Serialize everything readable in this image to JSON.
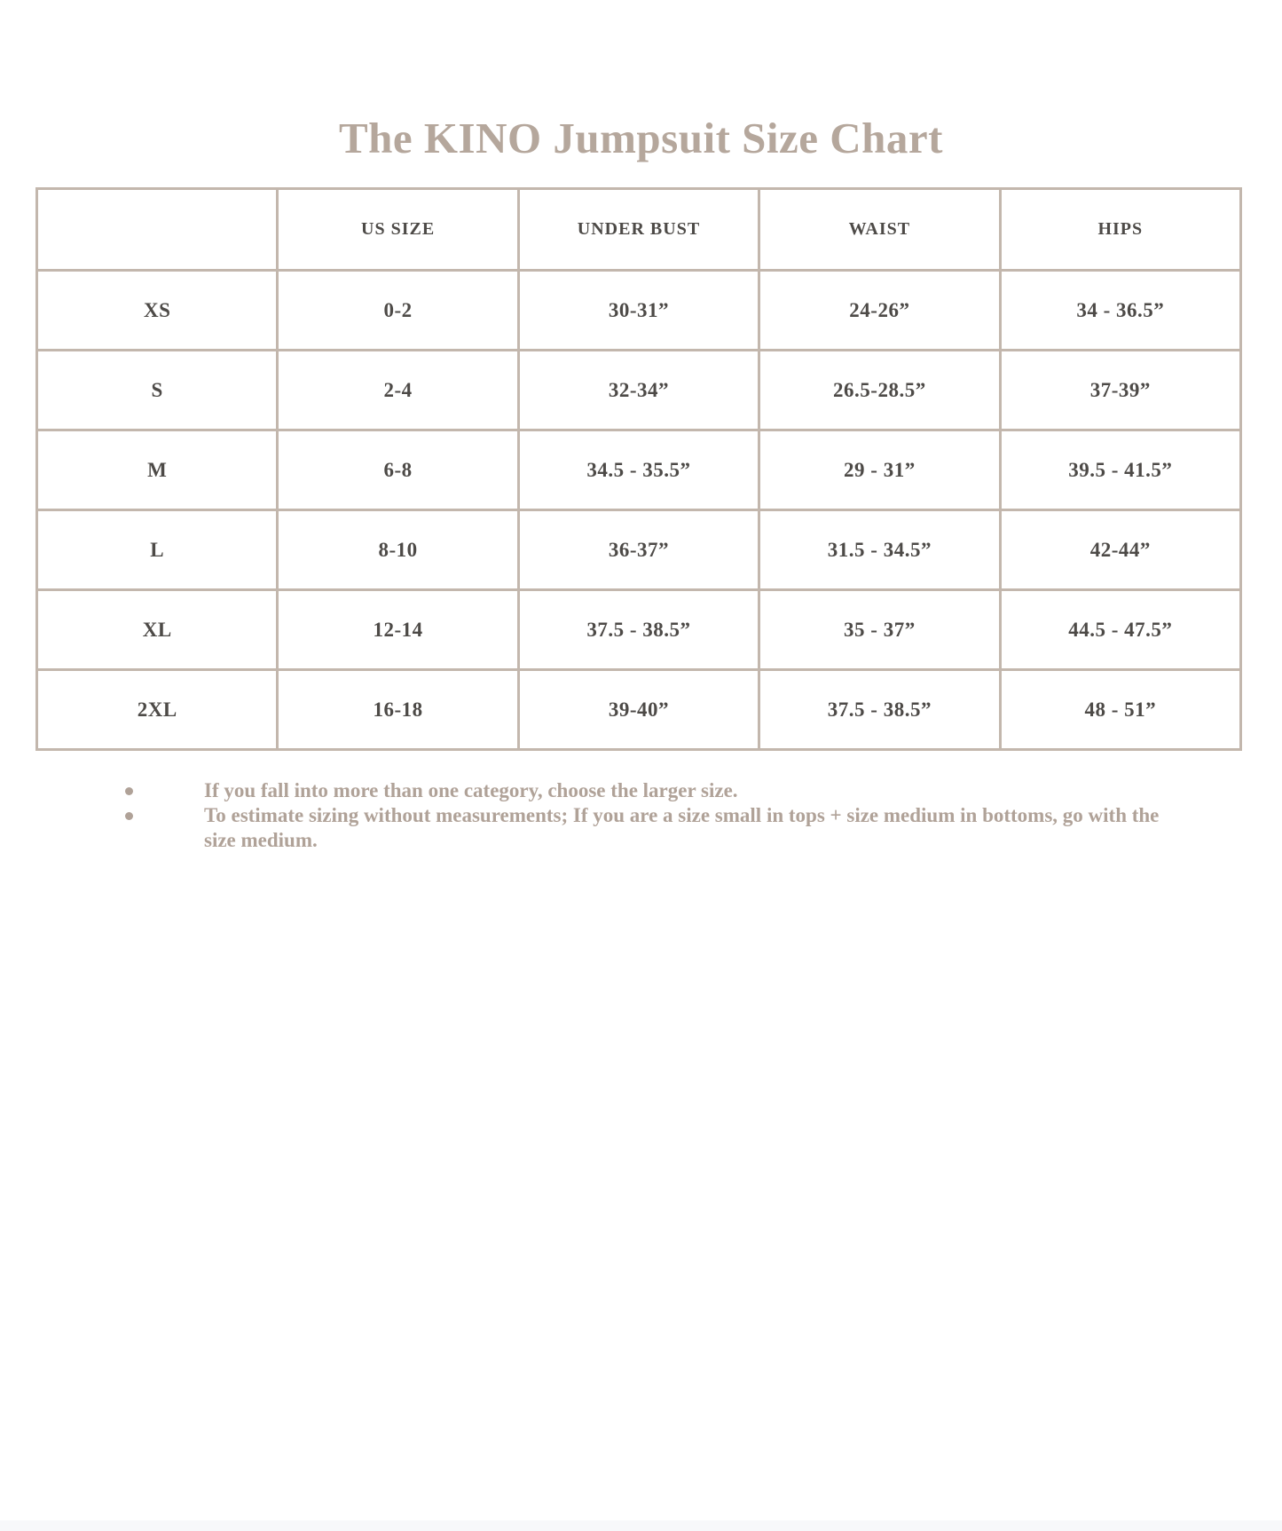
{
  "page_title": "The KINO Jumpsuit Size Chart",
  "chart_data": {
    "type": "table",
    "title": "The KINO Jumpsuit Size Chart",
    "columns": [
      "",
      "US SIZE",
      "UNDER BUST",
      "WAIST",
      "HIPS"
    ],
    "rows": [
      [
        "XS",
        "0-2",
        "30-31”",
        "24-26”",
        "34 - 36.5”"
      ],
      [
        "S",
        "2-4",
        "32-34”",
        "26.5-28.5”",
        "37-39”"
      ],
      [
        "M",
        "6-8",
        "34.5 - 35.5”",
        "29 - 31”",
        "39.5 - 41.5”"
      ],
      [
        "L",
        "8-10",
        "36-37”",
        "31.5 - 34.5”",
        "42-44”"
      ],
      [
        "XL",
        "12-14",
        "37.5 - 38.5”",
        "35 - 37”",
        "44.5 - 47.5”"
      ],
      [
        "2XL",
        "16-18",
        "39-40”",
        "37.5 - 38.5”",
        "48 - 51”"
      ]
    ]
  },
  "notes": [
    "If you fall into more than one category, choose the larger size.",
    "To estimate sizing without measurements; If you are a size small in tops + size medium in bottoms, go with the size medium."
  ],
  "colors": {
    "title_text": "#b5a79c",
    "table_border": "#c3b7ad",
    "cell_text": "#4d4a47",
    "notes_text": "#b0a298",
    "background": "#ffffff",
    "bottom_strip": "#f7f8fa"
  }
}
